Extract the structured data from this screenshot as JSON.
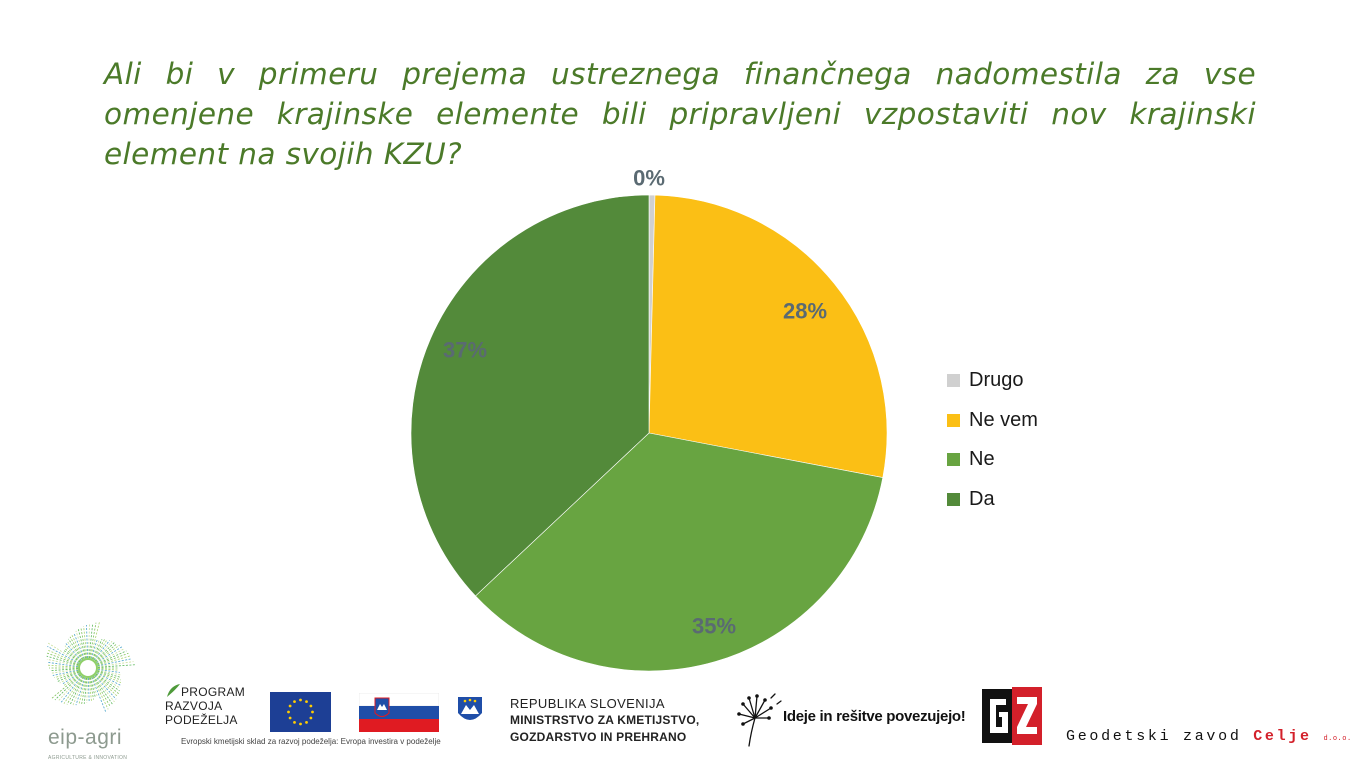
{
  "slide": {
    "title": "Ali bi v primeru prejema ustreznega finančnega nadomestila za vse omenjene krajinske elemente bili pripravljeni vzpostaviti nov krajinski element na svojih KZU?"
  },
  "chart_data": {
    "type": "pie",
    "title": "",
    "categories": [
      "Drugo",
      "Ne vem",
      "Ne",
      "Da"
    ],
    "values": [
      0.4,
      27.6,
      35,
      37
    ],
    "labels": [
      "0%",
      "28%",
      "35%",
      "37%"
    ],
    "colors": [
      "#d0d0d0",
      "#fbbf15",
      "#68a441",
      "#538a3a"
    ],
    "start_angle_deg": 0,
    "direction": "clockwise",
    "legend_position": "right",
    "data_label_color": "#5a6a72"
  },
  "legend": {
    "items": [
      {
        "label": "Drugo",
        "color": "#d0d0d0"
      },
      {
        "label": "Ne vem",
        "color": "#fbbf15"
      },
      {
        "label": "Ne",
        "color": "#68a441"
      },
      {
        "label": "Da",
        "color": "#538a3a"
      }
    ]
  },
  "footer": {
    "eip_agri": {
      "name": "eip-agri",
      "subtitle": "AGRICULTURE & INNOVATION"
    },
    "program": {
      "line1": "PROGRAM",
      "line2": "RAZVOJA",
      "line3": "PODEŽELJA",
      "caption": "Evropski kmetijski sklad za razvoj podeželja: Evropa investira v podeželje"
    },
    "ministry": {
      "line1": "REPUBLIKA SLOVENIJA",
      "line2": "MINISTRSTVO ZA KMETIJSTVO,",
      "line3": "GOZDARSTVO IN PREHRANO"
    },
    "tagline": "Ideje in rešitve povezujejo!",
    "company": {
      "name": "Geodetski zavod",
      "city": "Celje",
      "suffix": "d.o.o."
    },
    "colors": {
      "eu_blue": "#1d3f95",
      "eu_gold": "#ffcc00",
      "si_red": "#e01b22",
      "si_blue": "#1f4ea8",
      "gz_red": "#d3202a"
    }
  }
}
